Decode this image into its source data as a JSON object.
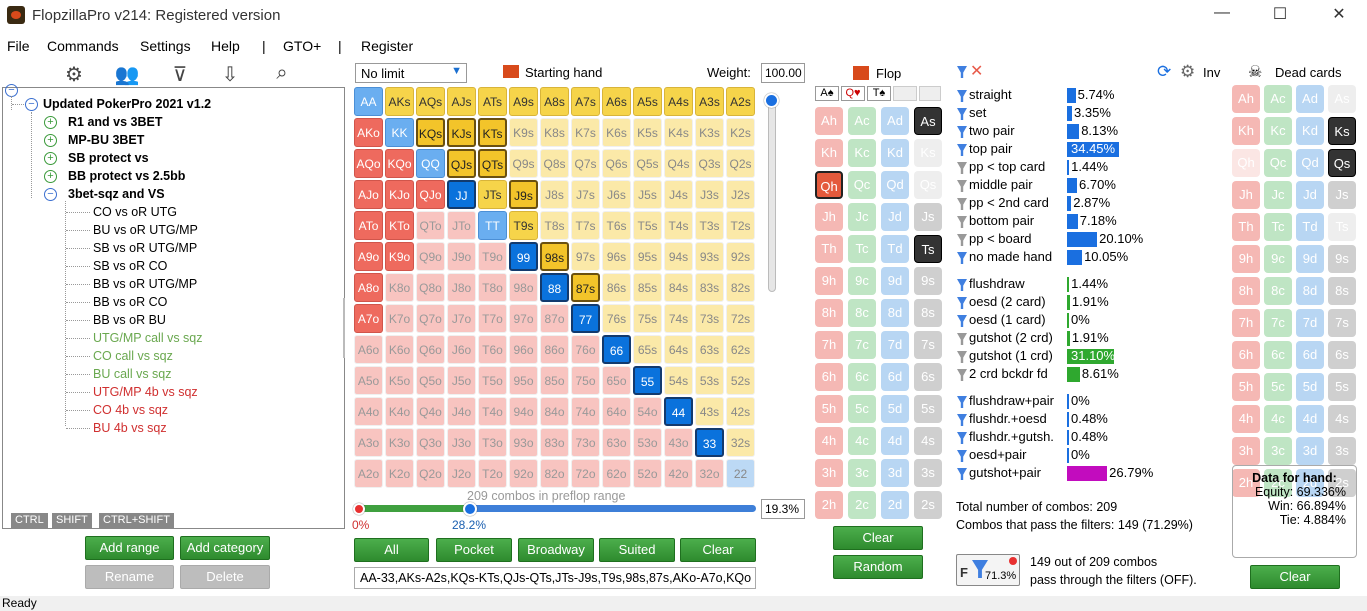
{
  "window": {
    "title": "FlopzillaPro v214: Registered version"
  },
  "menu": [
    "File",
    "Commands",
    "Settings",
    "Help",
    "|",
    "GTO+",
    "|",
    "Register"
  ],
  "tree": {
    "root": "Updated PokerPro 2021 v1.2",
    "groups": [
      "R1 and vs 3BET",
      "MP-BU 3BET",
      "SB protect vs",
      "BB protect vs 2.5bb"
    ],
    "open_group": "3bet-sqz and VS",
    "items": [
      {
        "label": "CO vs oR UTG",
        "color": "black"
      },
      {
        "label": "BU vs oR UTG/MP",
        "color": "black"
      },
      {
        "label": "SB vs oR UTG/MP",
        "color": "black"
      },
      {
        "label": "SB vs oR CO",
        "color": "black"
      },
      {
        "label": "BB vs oR UTG/MP",
        "color": "black"
      },
      {
        "label": "BB vs oR CO",
        "color": "black"
      },
      {
        "label": "BB vs oR BU",
        "color": "black"
      },
      {
        "label": "UTG/MP call vs sqz",
        "color": "green"
      },
      {
        "label": "CO call vs sqz",
        "color": "green"
      },
      {
        "label": "BU call vs sqz",
        "color": "green"
      },
      {
        "label": "UTG/MP 4b vs sqz",
        "color": "red"
      },
      {
        "label": "CO 4b vs sqz",
        "color": "red"
      },
      {
        "label": "BU 4b vs sqz",
        "color": "red"
      }
    ],
    "tabs": [
      "CTRL",
      "SHIFT",
      "CTRL+SHIFT"
    ]
  },
  "left_buttons": {
    "add_range": "Add range",
    "add_category": "Add category",
    "rename": "Rename",
    "delete": "Delete"
  },
  "range": {
    "limit": "No limit",
    "starting_hand": "Starting hand",
    "weight_label": "Weight:",
    "weight_value": "100.00",
    "combos_text": "209 combos in preflop range",
    "slider_left": "0%",
    "slider_right": "28.2%",
    "percent": "19.3%",
    "buttons": [
      "All",
      "Pocket",
      "Broadway",
      "Suited",
      "Clear"
    ],
    "range_text": "AA-33,AKs-A2s,KQs-KTs,QJs-QTs,JTs-J9s,T9s,98s,87s,AKo-A7o,KQo"
  },
  "grid": [
    [
      "AA",
      "AKs",
      "AQs",
      "AJs",
      "ATs",
      "A9s",
      "A8s",
      "A7s",
      "A6s",
      "A5s",
      "A4s",
      "A3s",
      "A2s"
    ],
    [
      "AKo",
      "KK",
      "KQs",
      "KJs",
      "KTs",
      "K9s",
      "K8s",
      "K7s",
      "K6s",
      "K5s",
      "K4s",
      "K3s",
      "K2s"
    ],
    [
      "AQo",
      "KQo",
      "QQ",
      "QJs",
      "QTs",
      "Q9s",
      "Q8s",
      "Q7s",
      "Q6s",
      "Q5s",
      "Q4s",
      "Q3s",
      "Q2s"
    ],
    [
      "AJo",
      "KJo",
      "QJo",
      "JJ",
      "JTs",
      "J9s",
      "J8s",
      "J7s",
      "J6s",
      "J5s",
      "J4s",
      "J3s",
      "J2s"
    ],
    [
      "ATo",
      "KTo",
      "QTo",
      "JTo",
      "TT",
      "T9s",
      "T8s",
      "T7s",
      "T6s",
      "T5s",
      "T4s",
      "T3s",
      "T2s"
    ],
    [
      "A9o",
      "K9o",
      "Q9o",
      "J9o",
      "T9o",
      "99",
      "98s",
      "97s",
      "96s",
      "95s",
      "94s",
      "93s",
      "92s"
    ],
    [
      "A8o",
      "K8o",
      "Q8o",
      "J8o",
      "T8o",
      "98o",
      "88",
      "87s",
      "86s",
      "85s",
      "84s",
      "83s",
      "82s"
    ],
    [
      "A7o",
      "K7o",
      "Q7o",
      "J7o",
      "T7o",
      "97o",
      "87o",
      "77",
      "76s",
      "75s",
      "74s",
      "73s",
      "72s"
    ],
    [
      "A6o",
      "K6o",
      "Q6o",
      "J6o",
      "T6o",
      "96o",
      "86o",
      "76o",
      "66",
      "65s",
      "64s",
      "63s",
      "62s"
    ],
    [
      "A5o",
      "K5o",
      "Q5o",
      "J5o",
      "T5o",
      "95o",
      "85o",
      "75o",
      "65o",
      "55",
      "54s",
      "53s",
      "52s"
    ],
    [
      "A4o",
      "K4o",
      "Q4o",
      "J4o",
      "T4o",
      "94o",
      "84o",
      "74o",
      "64o",
      "54o",
      "44",
      "43s",
      "42s"
    ],
    [
      "A3o",
      "K3o",
      "Q3o",
      "J3o",
      "T3o",
      "93o",
      "83o",
      "73o",
      "63o",
      "53o",
      "43o",
      "33",
      "32s"
    ],
    [
      "A2o",
      "K2o",
      "Q2o",
      "J2o",
      "T2o",
      "92o",
      "82o",
      "72o",
      "62o",
      "52o",
      "42o",
      "32o",
      "22"
    ]
  ],
  "flop": {
    "label": "Flop",
    "board": [
      "A♠",
      "Q♥",
      "T♠"
    ],
    "ranks": [
      "A",
      "K",
      "Q",
      "J",
      "T",
      "9",
      "8",
      "7",
      "6",
      "5",
      "4",
      "3",
      "2"
    ],
    "suits": [
      "h",
      "c",
      "d",
      "s"
    ],
    "clear": "Clear",
    "random": "Random"
  },
  "stats": {
    "inv": "Inv",
    "made": [
      {
        "label": "straight",
        "value": "5.74%",
        "pct": 5.74
      },
      {
        "label": "set",
        "value": "3.35%",
        "pct": 3.35
      },
      {
        "label": "two pair",
        "value": "8.13%",
        "pct": 8.13
      },
      {
        "label": "top pair",
        "value": "34.45%",
        "pct": 34.45
      },
      {
        "label": "pp < top card",
        "value": "1.44%",
        "pct": 1.44
      },
      {
        "label": "middle pair",
        "value": "6.70%",
        "pct": 6.7
      },
      {
        "label": "pp < 2nd card",
        "value": "2.87%",
        "pct": 2.87
      },
      {
        "label": "bottom pair",
        "value": "7.18%",
        "pct": 7.18
      },
      {
        "label": "pp < board",
        "value": "20.10%",
        "pct": 20.1
      },
      {
        "label": "no made hand",
        "value": "10.05%",
        "pct": 10.05
      }
    ],
    "draws": [
      {
        "label": "flushdraw",
        "value": "1.44%",
        "pct": 1.44
      },
      {
        "label": "oesd (2 card)",
        "value": "1.91%",
        "pct": 1.91
      },
      {
        "label": "oesd (1 card)",
        "value": "0%",
        "pct": 0
      },
      {
        "label": "gutshot (2 crd)",
        "value": "1.91%",
        "pct": 1.91
      },
      {
        "label": "gutshot (1 crd)",
        "value": "31.10%",
        "pct": 31.1
      },
      {
        "label": "2 crd bckdr fd",
        "value": "8.61%",
        "pct": 8.61
      }
    ],
    "combos": [
      {
        "label": "flushdraw+pair",
        "value": "0%",
        "pct": 0
      },
      {
        "label": "flushdr.+oesd",
        "value": "0.48%",
        "pct": 0.48
      },
      {
        "label": "flushdr.+gutsh.",
        "value": "0.48%",
        "pct": 0.48
      },
      {
        "label": "oesd+pair",
        "value": "0%",
        "pct": 0
      },
      {
        "label": "gutshot+pair",
        "value": "26.79%",
        "pct": 26.79
      }
    ],
    "total": "Total number of combos: 209",
    "pass": "Combos that pass the filters: 149 (71.29%)",
    "filter_pct": "71.3%",
    "filter_msg1": "149 out of 209 combos",
    "filter_msg2": "pass through the filters (OFF)."
  },
  "dead": {
    "label": "Dead cards",
    "hand_title": "Data for hand:",
    "equity": "Equity: 69.336%",
    "win": "Win: 66.894%",
    "tie": "Tie: 4.884%",
    "clear": "Clear"
  },
  "status": "Ready"
}
